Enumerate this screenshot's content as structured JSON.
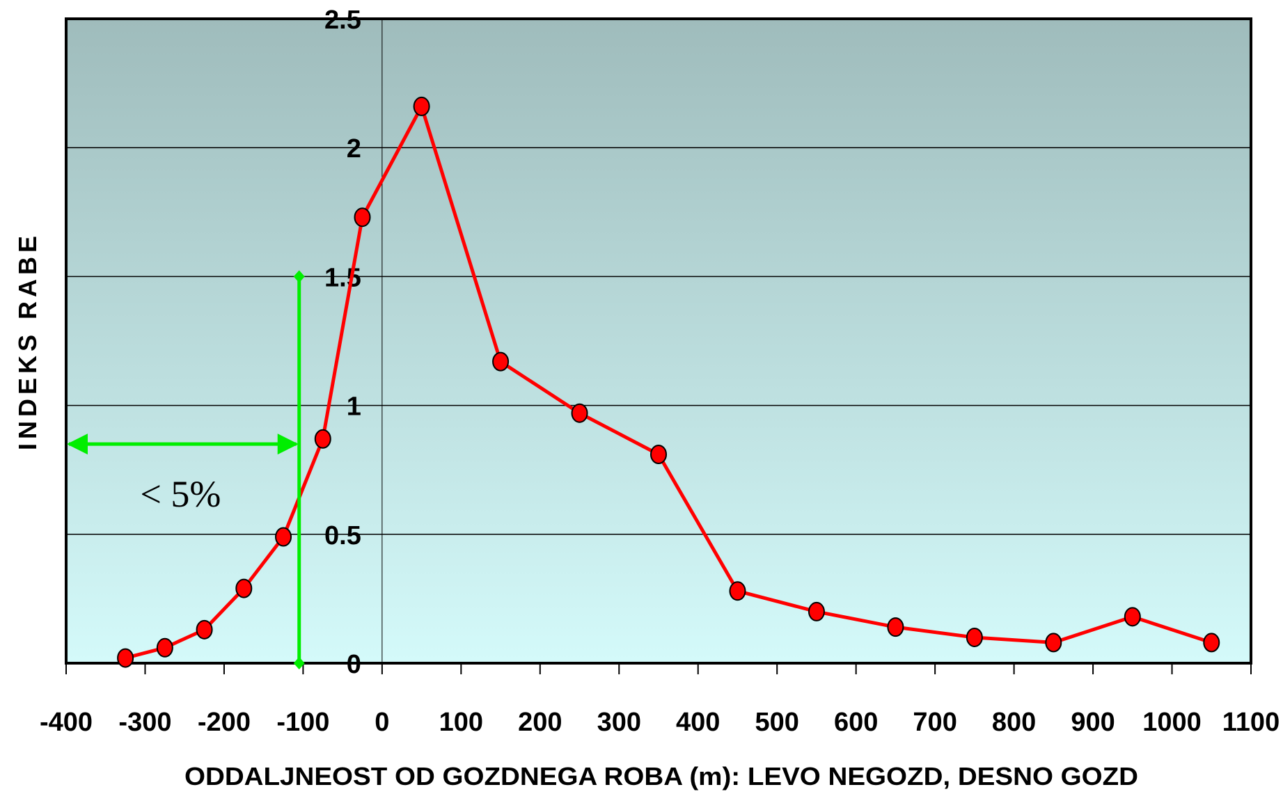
{
  "chart_data": {
    "type": "line",
    "title": "",
    "xlabel": "ODDALJNEOST OD GOZDNEGA ROBA (m): LEVO NEGOZD, DESNO GOZD",
    "ylabel": "INDEKS RABE",
    "xlim": [
      -400,
      1100
    ],
    "ylim": [
      0,
      2.5
    ],
    "x_ticks": [
      "-400",
      "-300",
      "-200",
      "-100",
      "0",
      "100",
      "200",
      "300",
      "400",
      "500",
      "600",
      "700",
      "800",
      "900",
      "1000",
      "1100"
    ],
    "y_ticks": [
      "0",
      "0.5",
      "1",
      "1.5",
      "2",
      "2.5"
    ],
    "grid": "horizontal",
    "series": [
      {
        "color": "#ff0000",
        "marker_color": "#ff0000",
        "x": [
          -325,
          -275,
          -225,
          -175,
          -125,
          -75,
          -25,
          50,
          150,
          250,
          350,
          450,
          550,
          650,
          750,
          850,
          950,
          1050
        ],
        "y": [
          0.02,
          0.06,
          0.13,
          0.29,
          0.49,
          0.87,
          1.73,
          2.16,
          1.17,
          0.97,
          0.81,
          0.28,
          0.2,
          0.14,
          0.1,
          0.08,
          0.18,
          0.08
        ]
      }
    ],
    "annotations": {
      "text": "< 5%",
      "threshold_x": -105,
      "vertical_marker_y_range": [
        0,
        1.5
      ],
      "horizontal_arrow_y": 0.85,
      "color": "#00ee00"
    },
    "colors": {
      "plot_bg_top": "#9fbcbc",
      "plot_bg_bottom": "#d4fafa",
      "line": "#ff0000",
      "annotation": "#00ee00"
    }
  }
}
